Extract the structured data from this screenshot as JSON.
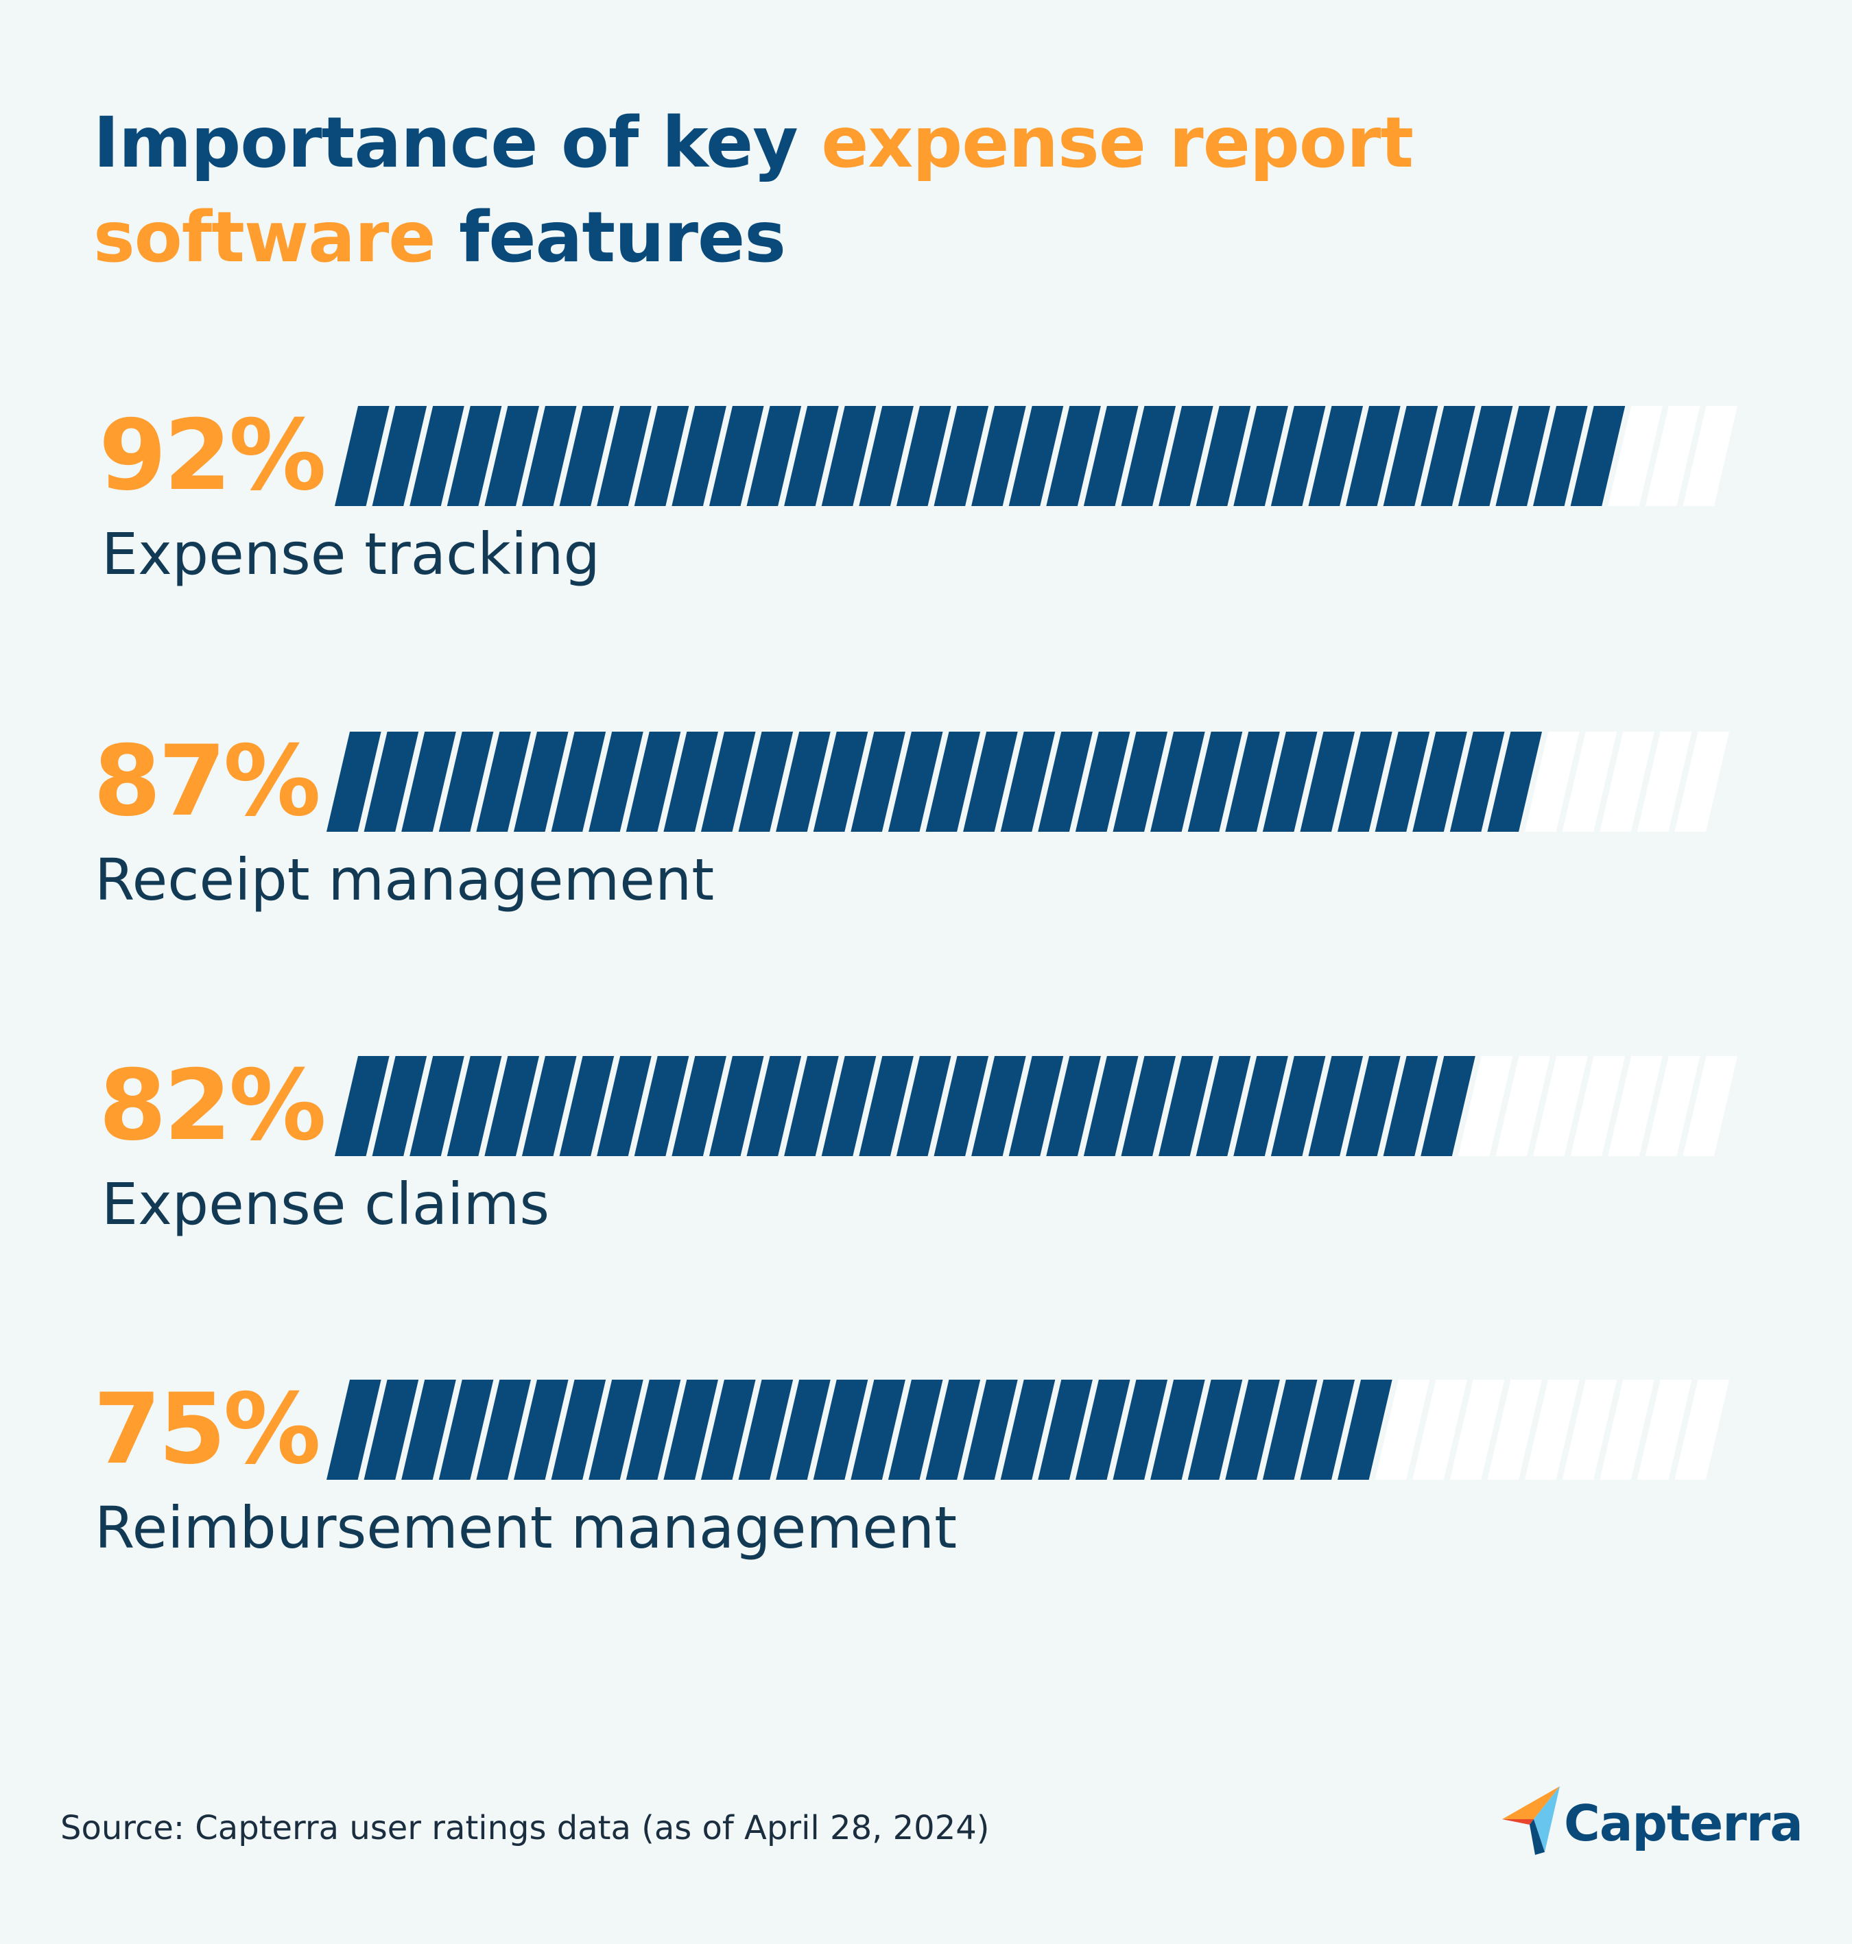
{
  "title": {
    "part1": "Importance of key ",
    "highlight1": "expense report",
    "highlight2": "software",
    "part2": " features"
  },
  "colors": {
    "navy": "#0a4a7a",
    "orange": "#ff9d2e",
    "stripe_empty": "#ffffff",
    "background": "#f2f7f7"
  },
  "chart_data": {
    "type": "bar",
    "orientation": "horizontal",
    "title": "Importance of key expense report software features",
    "categories": [
      "Expense tracking",
      "Receipt management",
      "Expense claims",
      "Reimbursement management"
    ],
    "values": [
      92,
      87,
      82,
      75
    ],
    "value_labels": [
      "92%",
      "87%",
      "82%",
      "75%"
    ],
    "unit": "%",
    "xlim": [
      0,
      100
    ]
  },
  "source": "Source: Capterra user ratings data (as of April 28, 2024)",
  "brand": {
    "name": "Capterra"
  }
}
